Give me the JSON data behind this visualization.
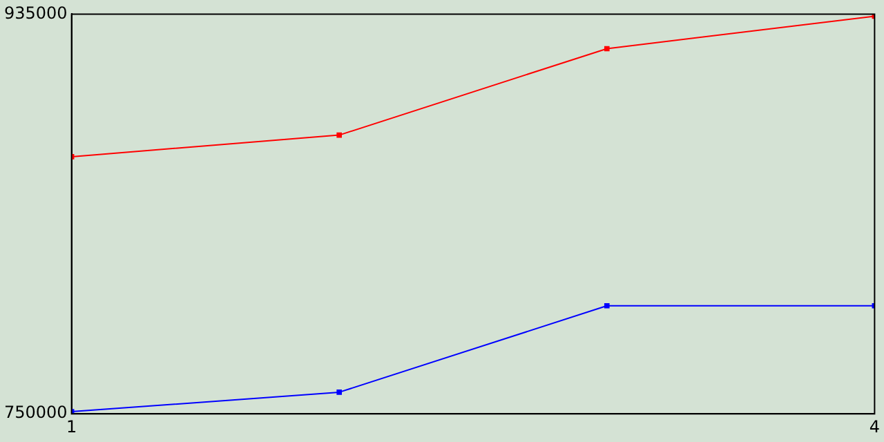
{
  "chart_data": {
    "type": "line",
    "x": [
      1,
      2,
      3,
      4
    ],
    "series": [
      {
        "color": "#ff0000",
        "values": [
          869000,
          879000,
          919000,
          934000
        ]
      },
      {
        "color": "#0000ff",
        "values": [
          751000,
          760000,
          800000,
          800000
        ]
      }
    ],
    "xlim": [
      1,
      4
    ],
    "xticks": [
      1,
      4
    ],
    "ylim": [
      750000,
      935000
    ],
    "yticks": [
      750000,
      935000
    ],
    "grid": false,
    "legend": false,
    "marker": "square",
    "line_style": "solid"
  }
}
